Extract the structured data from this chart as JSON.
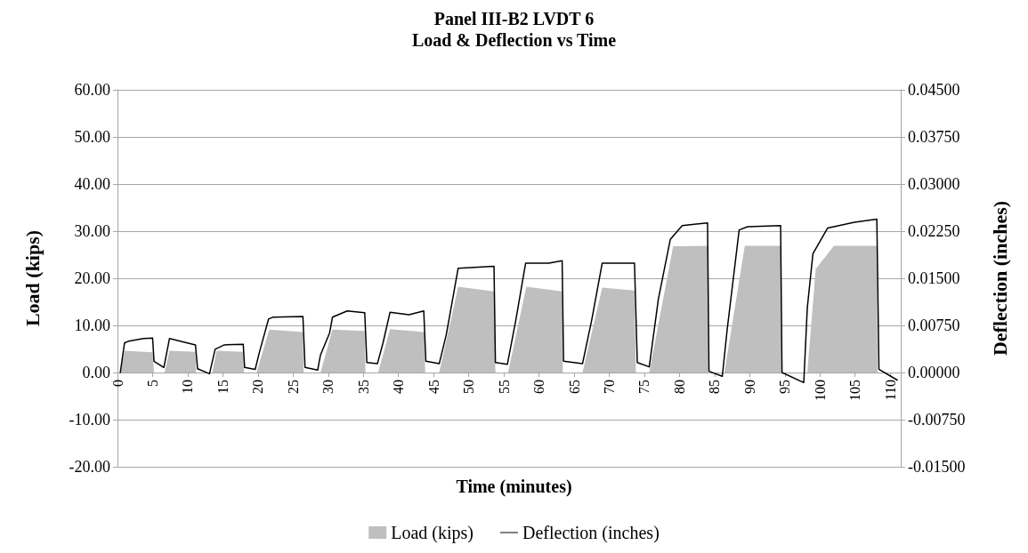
{
  "chart_data": {
    "type": "area",
    "title": "Panel III-B2 LVDT 6",
    "subtitle": "Load & Deflection vs Time",
    "xlabel": "Time (minutes)",
    "ylabel": "Load (kips)",
    "y2label": "Deflection (inches)",
    "xlim": [
      0,
      111.5
    ],
    "xticks": [
      0,
      5,
      10,
      15,
      20,
      25,
      30,
      35,
      40,
      45,
      50,
      55,
      60,
      65,
      70,
      75,
      80,
      85,
      90,
      95,
      100,
      105,
      110
    ],
    "ylim": [
      -20,
      60
    ],
    "yticks": [
      {
        "value": -20,
        "label": "-20.00"
      },
      {
        "value": -10,
        "label": "-10.00"
      },
      {
        "value": 0,
        "label": "0.00"
      },
      {
        "value": 10,
        "label": "10.00"
      },
      {
        "value": 20,
        "label": "20.00"
      },
      {
        "value": 30,
        "label": "30.00"
      },
      {
        "value": 40,
        "label": "40.00"
      },
      {
        "value": 50,
        "label": "50.00"
      },
      {
        "value": 60,
        "label": "60.00"
      }
    ],
    "y2lim": [
      -0.015,
      0.045
    ],
    "y2ticks": [
      {
        "value": -0.015,
        "label": "-0.01500"
      },
      {
        "value": -0.0075,
        "label": "-0.00750"
      },
      {
        "value": 0,
        "label": "0.00000"
      },
      {
        "value": 0.0075,
        "label": "0.00750"
      },
      {
        "value": 0.015,
        "label": "0.01500"
      },
      {
        "value": 0.0225,
        "label": "0.02250"
      },
      {
        "value": 0.03,
        "label": "0.03000"
      },
      {
        "value": 0.0375,
        "label": "0.03750"
      },
      {
        "value": 0.045,
        "label": "0.04500"
      }
    ],
    "grid": "y",
    "legend": "bottom",
    "marker": "none",
    "series": [
      {
        "name": "Load (kips)",
        "color": "#bfbfbf",
        "x": [
          0.4,
          1.0,
          5.0,
          5.2,
          6.7,
          7.4,
          11.1,
          11.2,
          13.5,
          14.1,
          17.9,
          18.0,
          19.8,
          21.6,
          26.4,
          26.5,
          28.9,
          30.6,
          35.2,
          35.3,
          37.1,
          38.8,
          43.7,
          43.8,
          45.8,
          48.5,
          53.6,
          53.8,
          55.6,
          58.2,
          63.3,
          63.4,
          66.2,
          69.0,
          73.6,
          73.8,
          75.7,
          79.1,
          84.0,
          84.1,
          86.4,
          89.3,
          94.4,
          94.5,
          98.2,
          99.4,
          102.0,
          108.1,
          108.2,
          111.0
        ],
        "values": [
          0,
          4.6,
          4.3,
          0,
          0,
          4.6,
          4.4,
          0,
          0,
          4.6,
          4.4,
          0,
          0,
          9.1,
          8.6,
          0,
          0,
          9.1,
          8.8,
          0,
          0,
          9.2,
          8.6,
          0,
          0,
          18.2,
          17.2,
          0,
          0,
          18.2,
          17.2,
          0,
          0,
          18.0,
          17.4,
          0,
          0,
          26.8,
          26.9,
          0,
          0,
          26.9,
          26.9,
          0,
          0,
          22.0,
          26.9,
          26.9,
          0,
          0
        ]
      },
      {
        "name": "Deflection (inches)",
        "type": "line",
        "axis": "y2",
        "color": "#000000",
        "line_style": "solid",
        "x": [
          0.4,
          1.0,
          1.6,
          3.7,
          5.0,
          5.2,
          6.6,
          7.4,
          11.1,
          11.4,
          13.1,
          13.9,
          15.2,
          17.9,
          18.1,
          19.6,
          20.2,
          21.5,
          22.1,
          26.4,
          26.7,
          28.5,
          28.9,
          30.2,
          30.6,
          32.7,
          35.2,
          35.5,
          37.0,
          37.8,
          38.8,
          41.5,
          43.6,
          43.9,
          45.8,
          46.8,
          48.5,
          53.6,
          53.8,
          55.5,
          56.7,
          58.1,
          61.4,
          63.3,
          63.5,
          66.2,
          67.5,
          69.0,
          73.6,
          74.0,
          75.7,
          77.0,
          78.7,
          80.4,
          82.1,
          84.0,
          84.2,
          86.1,
          86.8,
          88.5,
          89.7,
          94.4,
          94.6,
          97.7,
          98.2,
          99.0,
          101.1,
          104.9,
          108.1,
          108.4,
          111.0
        ],
        "values": [
          0,
          0.0047,
          0.005,
          0.0054,
          0.0055,
          0.0018,
          0.0008,
          0.0054,
          0.0044,
          0.0006,
          -0.0002,
          0.0037,
          0.0044,
          0.0045,
          0.0008,
          0.0005,
          0.0032,
          0.0085,
          0.0088,
          0.0089,
          0.0008,
          0.0004,
          0.0028,
          0.0063,
          0.0088,
          0.0098,
          0.0095,
          0.0016,
          0.0014,
          0.0047,
          0.0096,
          0.0092,
          0.0098,
          0.0018,
          0.0014,
          0.006,
          0.0166,
          0.0169,
          0.0016,
          0.0013,
          0.0083,
          0.0174,
          0.0174,
          0.0178,
          0.0018,
          0.0014,
          0.0083,
          0.0174,
          0.0174,
          0.0016,
          0.0009,
          0.0117,
          0.0212,
          0.0234,
          0.0236,
          0.0238,
          0.0002,
          -0.0006,
          0.0069,
          0.0227,
          0.0232,
          0.0234,
          0,
          -0.0016,
          0.0103,
          0.0189,
          0.023,
          0.0239,
          0.0244,
          0.0005,
          -0.0012
        ]
      }
    ]
  }
}
